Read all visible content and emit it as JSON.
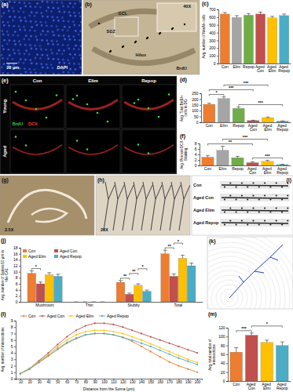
{
  "chart_data": [
    {
      "type": "bar",
      "title": "(c)",
      "y_label": "Avg. number of NeuN+ cells",
      "categories": [
        "Con",
        "Elim",
        "Repop",
        "Aged Con",
        "Aged Elim",
        "Aged Repop"
      ],
      "values": [
        640,
        595,
        625,
        640,
        590,
        620
      ],
      "errors": [
        20,
        25,
        20,
        25,
        20,
        20
      ],
      "colors": [
        "#ed7d31",
        "#a5a5a5",
        "#70ad47",
        "#c0504d",
        "#ffc000",
        "#4bacc6"
      ],
      "ylim": [
        0,
        700
      ],
      "yticks": [
        0,
        100,
        200,
        300,
        400,
        500,
        600,
        700
      ],
      "grid": false
    },
    {
      "type": "bar",
      "title": "(d)",
      "y_label": "Avg. Total BrdU+ cells in DG",
      "categories": [
        "Con",
        "Elim",
        "Repop",
        "Aged Con",
        "Aged Elim",
        "Aged Repop"
      ],
      "values": [
        155,
        205,
        120,
        15,
        40,
        10
      ],
      "errors": [
        10,
        15,
        12,
        3,
        6,
        2
      ],
      "colors": [
        "#ed7d31",
        "#a5a5a5",
        "#70ad47",
        "#c0504d",
        "#ffc000",
        "#4bacc6"
      ],
      "ylim": [
        0,
        250
      ],
      "yticks": [
        0,
        50,
        100,
        150,
        200,
        250
      ],
      "grid": false,
      "significance": [
        {
          "between": [
            "Repop",
            "Aged Repop"
          ],
          "label": "***"
        },
        {
          "between": [
            "Con",
            "Elim"
          ],
          "label": "*"
        },
        {
          "between": [
            "Con",
            "Aged Con"
          ],
          "label": "***"
        },
        {
          "between": [
            "Elim",
            "Aged Elim"
          ],
          "label": "***"
        }
      ]
    },
    {
      "type": "bar",
      "title": "(f)",
      "y_label": "Avg. Percent DCX Staining",
      "categories": [
        "Con",
        "Elim",
        "Repop",
        "Aged Con",
        "Aged Elim",
        "Aged Repop"
      ],
      "values": [
        3.0,
        5.5,
        2.8,
        1.0,
        1.5,
        0.3
      ],
      "errors": [
        0.6,
        1.5,
        0.5,
        0.3,
        0.4,
        0.1
      ],
      "colors": [
        "#ed7d31",
        "#a5a5a5",
        "#70ad47",
        "#c0504d",
        "#ffc000",
        "#4bacc6"
      ],
      "ylim": [
        0,
        8
      ],
      "yticks": [
        0,
        2,
        4,
        6,
        8
      ],
      "grid": false,
      "significance": [
        {
          "between": [
            "Aged Con",
            "Aged Repop"
          ],
          "label": "***"
        },
        {
          "between": [
            "Con",
            "Aged Con"
          ],
          "label": "**"
        },
        {
          "between": [
            "Elim",
            "Aged Elim"
          ],
          "label": "***"
        }
      ]
    },
    {
      "type": "bar",
      "title": "(j)",
      "y_label": "Avg. number of Spines/10 μm in the CA1",
      "categories": [
        "Mushroom",
        "Thin",
        "Stubby",
        "Total"
      ],
      "series": [
        {
          "name": "Con",
          "color": "#ed7d31",
          "values": [
            9.5,
            0,
            6.5,
            16
          ],
          "errors": [
            0.8,
            0,
            0.6,
            1.2
          ]
        },
        {
          "name": "Aged Con",
          "color": "#c0504d",
          "values": [
            6,
            0,
            2.5,
            8.5
          ],
          "errors": [
            0.6,
            0,
            0.4,
            0.8
          ]
        },
        {
          "name": "Aged Elim",
          "color": "#ffc000",
          "values": [
            9,
            0,
            5.5,
            14.5
          ],
          "errors": [
            0.7,
            0,
            0.5,
            1.0
          ]
        },
        {
          "name": "Aged Repop",
          "color": "#4bacc6",
          "values": [
            8.5,
            0,
            3.5,
            12
          ],
          "errors": [
            0.7,
            0,
            0.4,
            0.9
          ]
        }
      ],
      "ylim": [
        0,
        18
      ],
      "yticks": [
        0,
        2,
        4,
        6,
        8,
        10,
        12,
        14,
        16,
        18
      ],
      "grid": false,
      "legend": "top-left",
      "significance": [
        {
          "category": "Mushroom",
          "between": [
            "Con",
            "Aged Con"
          ],
          "label": "*"
        },
        {
          "category": "Stubby",
          "between": [
            "Con",
            "Aged Con"
          ],
          "label": "**"
        },
        {
          "category": "Stubby",
          "between": [
            "Aged Con",
            "Aged Elim"
          ],
          "label": "**"
        },
        {
          "category": "Stubby",
          "between": [
            "Aged Elim",
            "Aged Repop"
          ],
          "label": "*"
        },
        {
          "category": "Total",
          "between": [
            "Con",
            "Aged Con"
          ],
          "label": "**"
        },
        {
          "category": "Total",
          "between": [
            "Aged Con",
            "Aged Elim"
          ],
          "label": "*"
        }
      ]
    },
    {
      "type": "line",
      "title": "(l)",
      "x_label": "Distance from the Soma (μm)",
      "y_label": "Avg. number of intersections",
      "x": [
        10,
        20,
        30,
        40,
        50,
        60,
        70,
        80,
        90,
        100,
        110,
        120,
        130,
        140,
        150,
        160,
        170,
        180,
        190,
        200
      ],
      "series": [
        {
          "name": "Con",
          "color": "#ed7d31",
          "values": [
            0.8,
            1.5,
            2.5,
            3.5,
            4.5,
            5.5,
            6.2,
            6.8,
            7.0,
            7.0,
            6.8,
            6.4,
            5.8,
            5.0,
            4.2,
            3.4,
            2.6,
            2.0,
            1.5,
            1.0
          ]
        },
        {
          "name": "Aged Con",
          "color": "#c0504d",
          "values": [
            0.8,
            1.6,
            2.8,
            4.0,
            5.3,
            6.5,
            7.5,
            8.2,
            8.6,
            8.6,
            8.4,
            8.0,
            7.5,
            7.0,
            6.5,
            6.0,
            5.5,
            5.0,
            4.5,
            4.0
          ]
        },
        {
          "name": "Aged Elim",
          "color": "#ffc000",
          "values": [
            0.8,
            1.6,
            2.7,
            3.8,
            5.0,
            6.0,
            6.8,
            7.3,
            7.5,
            7.5,
            7.3,
            7.0,
            6.5,
            6.0,
            5.4,
            4.8,
            4.2,
            3.6,
            3.0,
            2.5
          ]
        },
        {
          "name": "Aged Repop",
          "color": "#4bacc6",
          "values": [
            0.8,
            1.5,
            2.6,
            3.6,
            4.7,
            5.6,
            6.3,
            6.8,
            7.0,
            7.0,
            6.8,
            6.4,
            6.0,
            5.5,
            5.0,
            4.4,
            3.8,
            3.2,
            2.7,
            2.2
          ]
        }
      ],
      "xlim": [
        5,
        205
      ],
      "xticks": [
        10,
        20,
        30,
        40,
        50,
        60,
        70,
        80,
        90,
        100,
        110,
        120,
        130,
        140,
        150,
        160,
        170,
        180,
        190,
        200
      ],
      "ylim": [
        0,
        9
      ],
      "yticks": [
        0,
        1,
        2,
        3,
        4,
        5,
        6,
        7,
        8,
        9
      ],
      "grid": false,
      "legend": "top",
      "marker": "circle"
    },
    {
      "type": "bar",
      "title": "(m)",
      "y_label": "Avg. total number of intersections",
      "categories": [
        "Con",
        "Aged Con",
        "Aged Elim",
        "Aged Repop"
      ],
      "values": [
        65,
        103,
        87,
        80
      ],
      "errors": [
        10,
        5,
        5,
        8
      ],
      "colors": [
        "#ed7d31",
        "#c0504d",
        "#ffc000",
        "#4bacc6"
      ],
      "ylim": [
        0,
        120
      ],
      "yticks": [
        0,
        20,
        40,
        60,
        80,
        100,
        120
      ],
      "grid": false,
      "significance": [
        {
          "between": [
            "Con",
            "Aged Con"
          ],
          "label": "***"
        },
        {
          "between": [
            "Aged Con",
            "Aged Repop"
          ],
          "label": "*"
        }
      ]
    }
  ],
  "images": [
    {
      "title": "(a)",
      "labels": [
        "DAPI",
        "20 μm"
      ]
    },
    {
      "title": "(b)",
      "labels": [
        "GCL",
        "SGZ",
        "Hilus",
        "BrdU",
        "40X"
      ]
    },
    {
      "title": "(e)",
      "columns": [
        "Con",
        "Elim",
        "Repop"
      ],
      "rows": [
        "Young",
        "Aged"
      ],
      "labels": [
        "BrdU",
        "DCX"
      ]
    },
    {
      "title": "(g)",
      "labels": [
        "2.5X"
      ]
    },
    {
      "title": "(h)",
      "labels": [
        "20X"
      ]
    },
    {
      "title": "(i)",
      "rows": [
        "Con",
        "Aged Con",
        "Aged Elim",
        "Aged Repop"
      ]
    },
    {
      "title": "(k)"
    }
  ]
}
